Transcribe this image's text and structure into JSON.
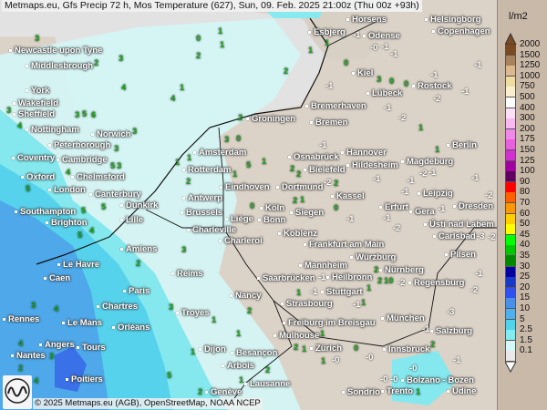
{
  "title": "Metmaps.eu, Gfs Precip 72 h, Mos Temperature (627), Sun, 09. Feb. 2025 21:00z (Thu 00z +93h)",
  "footer": "© 2025 Metmaps.eu (AGB), OpenStreetMap, NOAA NCEP",
  "logo_text": "METMAPS",
  "legend": {
    "unit": "l/m2",
    "levels": [
      {
        "label": "2000",
        "color": "#7a4a22"
      },
      {
        "label": "1500",
        "color": "#a8825c"
      },
      {
        "label": "1250",
        "color": "#dcb890"
      },
      {
        "label": "1000",
        "color": "#eedca0"
      },
      {
        "label": "750",
        "color": "#faf0d0"
      },
      {
        "label": "500",
        "color": "#ffffff"
      },
      {
        "label": "400",
        "color": "#fce0f6"
      },
      {
        "label": "300",
        "color": "#f8b8f0"
      },
      {
        "label": "200",
        "color": "#f088ea"
      },
      {
        "label": "175",
        "color": "#e860e0"
      },
      {
        "label": "150",
        "color": "#d030d0"
      },
      {
        "label": "125",
        "color": "#a000a0"
      },
      {
        "label": "100",
        "color": "#600060"
      },
      {
        "label": "90",
        "color": "#ff0000"
      },
      {
        "label": "80",
        "color": "#ff6000"
      },
      {
        "label": "70",
        "color": "#ff9800"
      },
      {
        "label": "60",
        "color": "#ffd000"
      },
      {
        "label": "50",
        "color": "#ffff00"
      },
      {
        "label": "45",
        "color": "#00ff00"
      },
      {
        "label": "40",
        "color": "#00c800"
      },
      {
        "label": "35",
        "color": "#008800"
      },
      {
        "label": "30",
        "color": "#0000a0"
      },
      {
        "label": "25",
        "color": "#1838c8"
      },
      {
        "label": "20",
        "color": "#3050f0"
      },
      {
        "label": "15",
        "color": "#4a90e8"
      },
      {
        "label": "10",
        "color": "#50b0ee"
      },
      {
        "label": "5",
        "color": "#50d4ee"
      },
      {
        "label": "2.5",
        "color": "#84ecf0"
      },
      {
        "label": "1.5",
        "color": "#d4f8f8"
      },
      {
        "label": "0.1",
        "color": "#e8e8e8"
      }
    ]
  },
  "cities": [
    "Newcastle upon Tyne",
    "Middlesbrough",
    "York",
    "Wakefield",
    "Sheffield",
    "Nottingham",
    "Peterborough",
    "Norwich",
    "Coventry",
    "Cambridge",
    "Oxford",
    "Chelmsford",
    "London",
    "Canterbury",
    "Southampton",
    "Brighton",
    "Dunkirk",
    "Lille",
    "Amiens",
    "Le Havre",
    "Caen",
    "Reims",
    "Paris",
    "Charleville",
    "Nancy",
    "Troyes",
    "Rennes",
    "Le Mans",
    "Chartres",
    "Orléans",
    "Angers",
    "Tours",
    "Nantes",
    "Poitiers",
    "Dijon",
    "Besançon",
    "Arbois",
    "Lausanne",
    "Genève",
    "Amsterdam",
    "Rotterdam",
    "Eindhoven",
    "Antwerp",
    "Brussels",
    "Liège",
    "Charleroi",
    "Groningen",
    "Bremerhaven",
    "Bremen",
    "Osnabrück",
    "Bielefeld",
    "Dortmund",
    "Köln",
    "Bonn",
    "Siegen",
    "Koblenz",
    "Hannover",
    "Hildesheim",
    "Magdeburg",
    "Kassel",
    "Frankfurt am Main",
    "Mannheim",
    "Saarbrücken",
    "Würzburg",
    "Nürnberg",
    "Stuttgart",
    "Strasbourg",
    "Heilbronn",
    "Freiburg im Breisgau",
    "Mulhouse",
    "Zürich",
    "Innsbruck",
    "München",
    "Regensburg",
    "Salzburg",
    "Erfurt",
    "Gera",
    "Leipzig",
    "Dresden",
    "Ústí nad Labem",
    "Carlsbad",
    "Pilsen",
    "Berlin",
    "Kiel",
    "Lübeck",
    "Rostock",
    "Odense",
    "Esbjerg",
    "Horsens",
    "Helsingborg",
    "Copenhagen",
    "Bolzano - Bozen",
    "Udine",
    "Trento",
    "Sondrio"
  ],
  "precip_values": [
    "4",
    "4",
    "5",
    "4",
    "5",
    "4",
    "3",
    "6",
    "4",
    "5",
    "3",
    "5",
    "5",
    "4",
    "5",
    "3",
    "4",
    "5",
    "3",
    "3",
    "4",
    "2",
    "3",
    "3",
    "3",
    "2",
    "3",
    "2",
    "2",
    "2",
    "1",
    "2",
    "2",
    "1",
    "2",
    "3",
    "2",
    "1",
    "2",
    "2",
    "1",
    "1",
    "1",
    "1",
    "1",
    "1",
    "2",
    "2",
    "1",
    "0",
    "1",
    "1",
    "1",
    "1",
    "0",
    "1",
    "1",
    "0",
    "1",
    "0",
    "1",
    "0",
    "1",
    "0",
    "0",
    "1",
    "0",
    "2",
    "2",
    "3",
    "1",
    "2",
    "10",
    "5",
    "1",
    "2",
    "3",
    "3",
    "2",
    "1"
  ],
  "temp_values": [
    "-1",
    "-0",
    "-1",
    "-1",
    "-0",
    "-1",
    "-2",
    "-1",
    "-0",
    "-1",
    "-1",
    "-2",
    "-1",
    "-3",
    "-1",
    "-2",
    "-1",
    "-0",
    "-1",
    "-2",
    "-1",
    "-1",
    "-2",
    "-2",
    "-1",
    "-1",
    "-0",
    "-2",
    "-1",
    "-1",
    "-3",
    "-1",
    "-2",
    "-1",
    "-0",
    "-1",
    "-2",
    "-1",
    "-1",
    "-1"
  ]
}
